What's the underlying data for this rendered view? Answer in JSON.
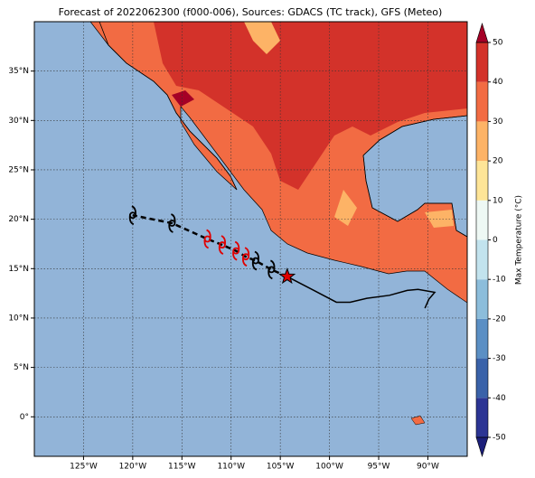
{
  "chart_data": {
    "type": "map",
    "title": "Forecast of 2022062300 (f000-006), Sources: GDACS (TC track), GFS (Meteo)",
    "xlim": [
      -130,
      -86
    ],
    "ylim": [
      -4,
      40
    ],
    "xticks": [
      {
        "value": -125,
        "label": "125°W"
      },
      {
        "value": -120,
        "label": "120°W"
      },
      {
        "value": -115,
        "label": "115°W"
      },
      {
        "value": -110,
        "label": "110°W"
      },
      {
        "value": -105,
        "label": "105°W"
      },
      {
        "value": -100,
        "label": "100°W"
      },
      {
        "value": -95,
        "label": "95°W"
      },
      {
        "value": -90,
        "label": "90°W"
      }
    ],
    "yticks": [
      {
        "value": 0,
        "label": "0°"
      },
      {
        "value": 5,
        "label": "5°N"
      },
      {
        "value": 10,
        "label": "10°N"
      },
      {
        "value": 15,
        "label": "15°N"
      },
      {
        "value": 20,
        "label": "20°N"
      },
      {
        "value": 25,
        "label": "25°N"
      },
      {
        "value": 30,
        "label": "30°N"
      },
      {
        "value": 35,
        "label": "35°N"
      }
    ],
    "grid": true,
    "ocean_color": "#92b4d8",
    "colorbar": {
      "label": "Max Temperature (°C)",
      "lim": [
        -50,
        50
      ],
      "ticks": [
        -50,
        -40,
        -30,
        -20,
        -10,
        0,
        10,
        20,
        30,
        40,
        50
      ],
      "colors": [
        "#2c3594",
        "#3a62a9",
        "#5b8fc4",
        "#8cbddb",
        "#c2e3ee",
        "#eef8f4",
        "#fee597",
        "#fdb366",
        "#f26b43",
        "#d3322a"
      ],
      "under_color": "#1c1f7a",
      "over_color": "#a50026"
    },
    "track": {
      "color": "#000000",
      "x": [
        -104.3,
        -101.6,
        -99.3,
        -97.9,
        -96.2,
        -93.9,
        -92.1,
        -91.0,
        -89.3,
        -89.9,
        -90.3
      ],
      "y": [
        14.2,
        12.8,
        11.6,
        11.6,
        12.0,
        12.3,
        12.8,
        12.9,
        12.6,
        11.9,
        11.0
      ]
    },
    "forecast": {
      "x": [
        -104.3,
        -105.9,
        -107.5,
        -108.5,
        -109.5,
        -110.9,
        -112.4,
        -116.0,
        -120.0
      ],
      "y": [
        14.2,
        14.9,
        15.8,
        16.2,
        16.8,
        17.4,
        18.0,
        19.6,
        20.4
      ],
      "markers": [
        "star",
        "storm",
        "storm",
        "storm",
        "storm",
        "storm",
        "storm",
        "storm",
        "storm"
      ],
      "colors": [
        "#e00000",
        "#000000",
        "#000000",
        "#e00000",
        "#e00000",
        "#e00000",
        "#e00000",
        "#000000",
        "#000000"
      ]
    }
  }
}
